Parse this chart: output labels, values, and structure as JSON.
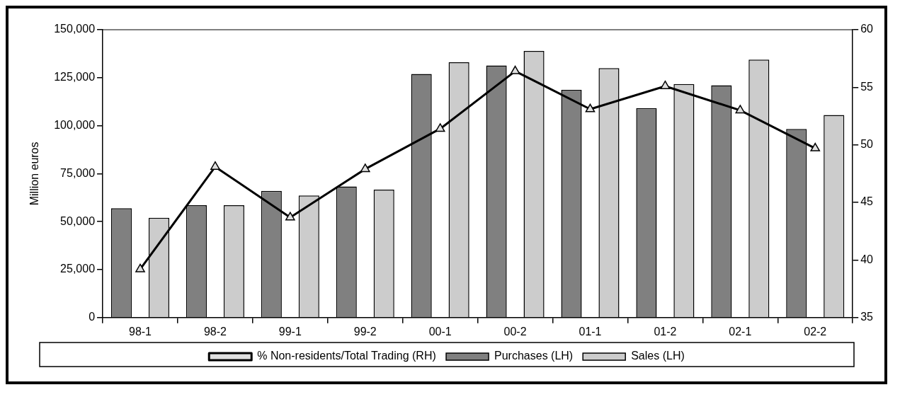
{
  "chart_data": {
    "type": "bar",
    "ylabel": "Million euros",
    "categories": [
      "98-1",
      "98-2",
      "99-1",
      "99-2",
      "00-1",
      "00-2",
      "01-1",
      "01-2",
      "02-1",
      "02-2"
    ],
    "series": [
      {
        "name": "Purchases (LH)",
        "color": "#808080",
        "values": [
          57000,
          58600,
          66000,
          68300,
          127000,
          131400,
          118700,
          109200,
          121100,
          98300
        ]
      },
      {
        "name": "Sales (LH)",
        "color": "#cccccc",
        "values": [
          52000,
          58600,
          63600,
          66700,
          133000,
          138900,
          130000,
          121700,
          134400,
          105600
        ]
      },
      {
        "name": "% Non-residents/Total Trading (RH)",
        "type": "line",
        "axis": "y2",
        "color": "#000000",
        "values": [
          39.2,
          48.1,
          43.7,
          47.9,
          51.4,
          56.4,
          53.1,
          55.1,
          53.0,
          49.7
        ]
      }
    ],
    "ylim": [
      0,
      150000
    ],
    "yticks": [
      {
        "value": 0,
        "label": "0"
      },
      {
        "value": 25000,
        "label": "25,000"
      },
      {
        "value": 50000,
        "label": "50,000"
      },
      {
        "value": 75000,
        "label": "75,000"
      },
      {
        "value": 100000,
        "label": "100,000"
      },
      {
        "value": 125000,
        "label": "125,000"
      },
      {
        "value": 150000,
        "label": "150,000"
      }
    ],
    "y2lim": [
      35,
      60
    ],
    "y2ticks": [
      35,
      40,
      45,
      50,
      55,
      60
    ],
    "grid": false,
    "legend": "bottom",
    "marker": "triangle",
    "line_style": "solid"
  }
}
